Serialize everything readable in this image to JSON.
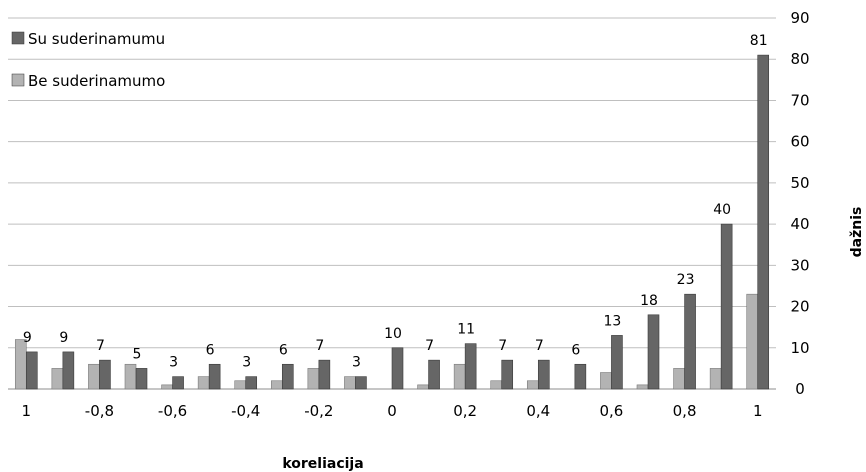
{
  "chart_data": {
    "type": "bar",
    "xlabel": "koreliacija",
    "ylabel": "dažnis",
    "ylim": [
      0,
      90
    ],
    "yticks": [
      0,
      10,
      20,
      30,
      40,
      50,
      60,
      70,
      80,
      90
    ],
    "y_axis_side": "right",
    "grid": true,
    "legend_position": "top-left",
    "category_tick_labels": [
      "1",
      "",
      "-0,8",
      "",
      "-0,6",
      "",
      "-0,4",
      "",
      "-0,2",
      "",
      "0",
      "",
      "0,2",
      "",
      "0,4",
      "",
      "0,6",
      "",
      "0,8",
      "",
      "1"
    ],
    "series": [
      {
        "name": "Be suderinamumo",
        "color": "#b3b3b3",
        "values": [
          12,
          5,
          6,
          6,
          1,
          3,
          2,
          2,
          5,
          3,
          0,
          1,
          6,
          2,
          2,
          0,
          4,
          1,
          5,
          5,
          23
        ]
      },
      {
        "name": "Su suderinamumu",
        "color": "#666666",
        "values": [
          9,
          9,
          7,
          5,
          3,
          6,
          3,
          6,
          7,
          3,
          10,
          7,
          11,
          7,
          7,
          6,
          13,
          18,
          23,
          40,
          81
        ],
        "data_labels": [
          "9",
          "9",
          "7",
          "5",
          "3",
          "6",
          "3",
          "6",
          "7",
          "3",
          "10",
          "7",
          "11",
          "7",
          "7",
          "6",
          "13",
          "18",
          "23",
          "40",
          "81"
        ]
      }
    ]
  }
}
